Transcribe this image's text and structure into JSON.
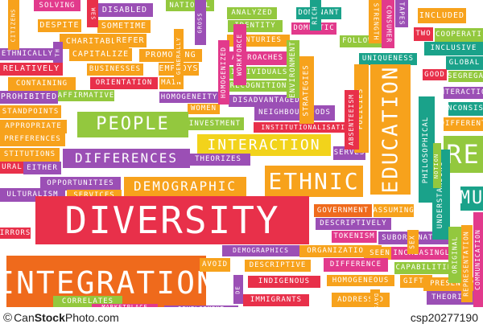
{
  "palette": {
    "orange": "#f7a21c",
    "green": "#93c83e",
    "red": "#e8304a",
    "pink": "#e23a8c",
    "purple": "#9b4fb5",
    "teal": "#1aa28a",
    "yellow": "#f2d31b",
    "lime": "#c9d52a",
    "deep_orange": "#ef6a1c"
  },
  "cloud_words": [
    {
      "text": "SOLVING",
      "color": "#e23a8c"
    },
    {
      "text": "DISABLED",
      "color": "#9b4fb5"
    },
    {
      "text": "NATIONAL",
      "color": "#93c83e"
    },
    {
      "text": "ANALYZED",
      "color": "#93c83e"
    },
    {
      "text": "DOMINANT",
      "color": "#1aa28a"
    },
    {
      "text": "INCLUDED",
      "color": "#f7a21c"
    },
    {
      "text": "DESPITE",
      "color": "#f7a21c"
    },
    {
      "text": "SOMETIME",
      "color": "#f7a21c"
    },
    {
      "text": "IDENTITY",
      "color": "#93c83e"
    },
    {
      "text": "DOMESTIC",
      "color": "#e23a8c"
    },
    {
      "text": "TWO",
      "color": "#e8304a"
    },
    {
      "text": "COOPERATI",
      "color": "#93c83e"
    },
    {
      "text": "CHARITABLE",
      "color": "#f7a21c"
    },
    {
      "text": "REFER",
      "color": "#f7a21c"
    },
    {
      "text": "CENTURIES",
      "color": "#f7a21c"
    },
    {
      "text": "FOLLOWING",
      "color": "#93c83e"
    },
    {
      "text": "INCLUSIVE",
      "color": "#1aa28a"
    },
    {
      "text": "ETHNICALLY",
      "color": "#9b4fb5"
    },
    {
      "text": "CAPITALIZE",
      "color": "#f7a21c"
    },
    {
      "text": "PROMOTING",
      "color": "#f7a21c"
    },
    {
      "text": "APPROACHES",
      "color": "#e23a8c"
    },
    {
      "text": "UNIQUENESS",
      "color": "#1aa28a"
    },
    {
      "text": "GLOBAL",
      "color": "#1aa28a"
    },
    {
      "text": "RELATIVELY",
      "color": "#e8304a"
    },
    {
      "text": "BUSINESSES",
      "color": "#f7a21c"
    },
    {
      "text": "EMPLOYS",
      "color": "#f7a21c"
    },
    {
      "text": "INDIVIDUALS",
      "color": "#93c83e"
    },
    {
      "text": "GOOD",
      "color": "#e8304a"
    },
    {
      "text": "SEGREGA",
      "color": "#93c83e"
    },
    {
      "text": "CONTAINING",
      "color": "#f7a21c"
    },
    {
      "text": "ORIENTATION",
      "color": "#e8304a"
    },
    {
      "text": "MAIN",
      "color": "#f7a21c"
    },
    {
      "text": "RECOGNITION",
      "color": "#93c83e"
    },
    {
      "text": "INTERACTION",
      "color": "#9b4fb5"
    },
    {
      "text": "PROHIBITED",
      "color": "#9b4fb5"
    },
    {
      "text": "AFFIRMATIVE",
      "color": "#93c83e"
    },
    {
      "text": "HOMOGENEITY",
      "color": "#9b4fb5"
    },
    {
      "text": "DISADVANTAGED",
      "color": "#9b4fb5"
    },
    {
      "text": "STANDPOINTS",
      "color": "#f7a21c"
    },
    {
      "text": "WOMEN",
      "color": "#f7a21c"
    },
    {
      "text": "NEIGHBOURHOODS",
      "color": "#9b4fb5"
    },
    {
      "text": "INCONSIST",
      "color": "#1aa28a"
    },
    {
      "text": "APPROPRIATE",
      "color": "#f7a21c"
    },
    {
      "text": "PEOPLE",
      "color": "#93c83e"
    },
    {
      "text": "INVESTMENT",
      "color": "#93c83e"
    },
    {
      "text": "INSTITUTIONALISATION",
      "color": "#e8304a"
    },
    {
      "text": "DIFFERENT",
      "color": "#f7a21c"
    },
    {
      "text": "PREFERENCES",
      "color": "#f7a21c"
    },
    {
      "text": "INTERACTION",
      "color": "#f2d31b"
    },
    {
      "text": "SERVES",
      "color": "#9b4fb5"
    },
    {
      "text": "STITUTIONS",
      "color": "#f7a21c"
    },
    {
      "text": "DIFFERENCES",
      "color": "#9b4fb5"
    },
    {
      "text": "THEORIZES",
      "color": "#9b4fb5"
    },
    {
      "text": "RE",
      "color": "#93c83e"
    },
    {
      "text": "URAL",
      "color": "#e8304a"
    },
    {
      "text": "EITHER",
      "color": "#9b4fb5"
    },
    {
      "text": "ETHNIC",
      "color": "#f7a21c"
    },
    {
      "text": "OPPORTUNITIES",
      "color": "#9b4fb5"
    },
    {
      "text": "DEMOGRAPHIC",
      "color": "#f7a21c"
    },
    {
      "text": "MU",
      "color": "#1aa28a"
    },
    {
      "text": "ULTURALISM",
      "color": "#9b4fb5"
    },
    {
      "text": "SERVICES",
      "color": "#f7a21c"
    },
    {
      "text": "DIVERSITY",
      "color": "#e8304a"
    },
    {
      "text": "GOVERNMENT",
      "color": "#ef6a1c"
    },
    {
      "text": "ASSUMING",
      "color": "#f7a21c"
    },
    {
      "text": "DESCRIPTIVELY",
      "color": "#9b4fb5"
    },
    {
      "text": "IRRORS",
      "color": "#e8304a"
    },
    {
      "text": "TOKENISM",
      "color": "#e23a8c"
    },
    {
      "text": "SUBORDINATION",
      "color": "#9b4fb5"
    },
    {
      "text": "DEMOGRAPHICS",
      "color": "#9b4fb5"
    },
    {
      "text": "ORGANIZATIONS",
      "color": "#f7a21c"
    },
    {
      "text": "SEEN",
      "color": "#f7a21c"
    },
    {
      "text": "INCREASINGLY",
      "color": "#e23a8c"
    },
    {
      "text": "INTEGRATION",
      "color": "#ef6a1c"
    },
    {
      "text": "AVOID",
      "color": "#f7a21c"
    },
    {
      "text": "DESCRIPTIVE",
      "color": "#f7a21c"
    },
    {
      "text": "DIFFERENCE",
      "color": "#e23a8c"
    },
    {
      "text": "CAPABILITIES",
      "color": "#93c83e"
    },
    {
      "text": "INDIGENOUS",
      "color": "#e8304a"
    },
    {
      "text": "HOMOGENEOUS",
      "color": "#f7a21c"
    },
    {
      "text": "GIFTS",
      "color": "#f7a21c"
    },
    {
      "text": "PRESENTIN",
      "color": "#f7a21c"
    },
    {
      "text": "CORRELATES",
      "color": "#93c83e"
    },
    {
      "text": "IMMIGRANTS",
      "color": "#e8304a"
    },
    {
      "text": "ADDRESSED",
      "color": "#f7a21c"
    },
    {
      "text": "THEORISTS",
      "color": "#9b4fb5"
    },
    {
      "text": "MARKETPLACE",
      "color": "#e23a8c"
    },
    {
      "text": "DEVELOPMENT",
      "color": "#9b4fb5"
    },
    {
      "text": "EDUCATION",
      "color": "#f7a21c"
    },
    {
      "text": "POLICIES",
      "color": "#f7a21c"
    },
    {
      "text": "STRATEGIES",
      "color": "#f7a21c"
    },
    {
      "text": "PHILOSOPHICAL",
      "color": "#1aa28a"
    },
    {
      "text": "UNDERSTANDING",
      "color": "#1aa28a"
    },
    {
      "text": "COMMUNICATION",
      "color": "#e23a8c"
    },
    {
      "text": "REPRESENTATION",
      "color": "#f7a21c"
    },
    {
      "text": "ORIGINAL",
      "color": "#93c83e"
    },
    {
      "text": "ENVIRONMENT",
      "color": "#93c83e"
    },
    {
      "text": "WORKFORCE",
      "color": "#e23a8c"
    },
    {
      "text": "HOMOGENIZED",
      "color": "#e23a8c"
    },
    {
      "text": "ABSENTEEISM",
      "color": "#e8304a"
    },
    {
      "text": "CONSUMER",
      "color": "#e23a8c"
    },
    {
      "text": "STRENGTH",
      "color": "#f7a21c"
    },
    {
      "text": "TAPES",
      "color": "#9b4fb5"
    },
    {
      "text": "SEX",
      "color": "#f7a21c"
    },
    {
      "text": "GROSS",
      "color": "#9b4fb5"
    },
    {
      "text": "RICH",
      "color": "#1aa28a"
    },
    {
      "text": "CITIZENS",
      "color": "#f7a21c"
    },
    {
      "text": "WES",
      "color": "#e8304a"
    },
    {
      "text": "GENERALLY",
      "color": "#f7a21c"
    },
    {
      "text": "NOTION",
      "color": "#93c83e"
    },
    {
      "text": "DE",
      "color": "#9b4fb5"
    },
    {
      "text": "DAYS",
      "color": "#f7a21c"
    },
    {
      "text": "TH",
      "color": "#9b4fb5"
    }
  ],
  "footer": {
    "copyright": "©",
    "site_prefix": "Can",
    "site_bold": "Stock",
    "site_suffix": "Photo.com",
    "image_id": "csp20277190"
  }
}
